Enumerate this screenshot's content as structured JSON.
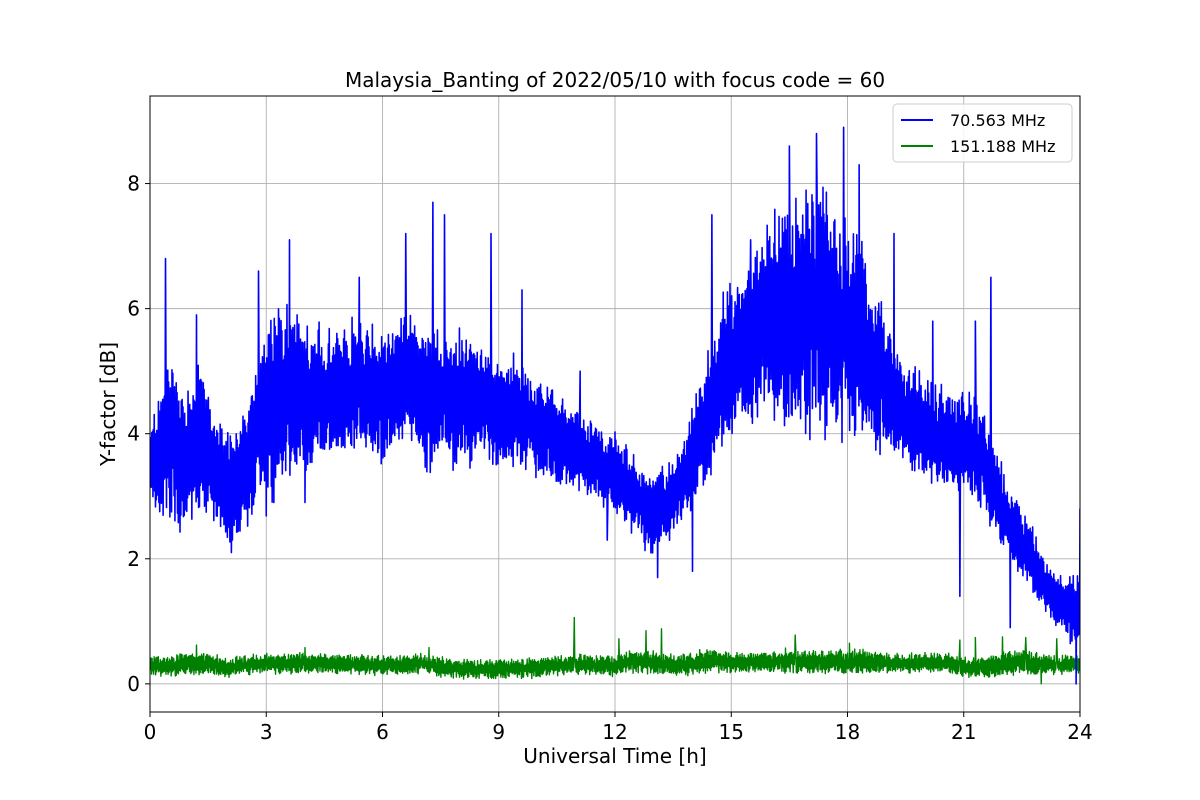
{
  "chart_data": {
    "type": "line",
    "title": "Malaysia_Banting of 2022/05/10 with focus code = 60",
    "xlabel": "Universal Time [h]",
    "ylabel": "Y-factor [dB]",
    "xlim": [
      0,
      24
    ],
    "ylim": [
      -0.45,
      9.4
    ],
    "xticks": [
      0,
      3,
      6,
      9,
      12,
      15,
      18,
      21,
      24
    ],
    "yticks": [
      0,
      2,
      4,
      6,
      8
    ],
    "grid": true,
    "legend_position": "upper right",
    "series": [
      {
        "name": "70.563 MHz",
        "color": "#0000ff",
        "x": [
          0,
          0.25,
          0.5,
          0.75,
          1.0,
          1.25,
          1.5,
          1.75,
          2.0,
          2.25,
          2.5,
          2.75,
          3.0,
          3.25,
          3.5,
          3.75,
          4.0,
          4.25,
          4.5,
          4.75,
          5.0,
          5.25,
          5.5,
          5.75,
          6.0,
          6.25,
          6.5,
          6.75,
          7.0,
          7.25,
          7.5,
          7.75,
          8.0,
          8.25,
          8.5,
          8.75,
          9.0,
          9.25,
          9.5,
          9.75,
          10.0,
          10.25,
          10.5,
          10.75,
          11.0,
          11.25,
          11.5,
          11.75,
          12.0,
          12.25,
          12.5,
          12.75,
          13.0,
          13.25,
          13.5,
          13.75,
          14.0,
          14.25,
          14.5,
          14.75,
          15.0,
          15.25,
          15.5,
          15.75,
          16.0,
          16.25,
          16.5,
          16.75,
          17.0,
          17.25,
          17.5,
          17.75,
          18.0,
          18.25,
          18.5,
          18.75,
          19.0,
          19.25,
          19.5,
          19.75,
          20.0,
          20.25,
          20.5,
          20.75,
          21.0,
          21.25,
          21.5,
          21.75,
          22.0,
          22.25,
          22.5,
          22.75,
          23.0,
          23.25,
          23.5,
          23.75,
          24.0
        ],
        "y": [
          3.5,
          3.6,
          4.0,
          3.6,
          3.8,
          4.0,
          3.8,
          3.3,
          3.2,
          3.2,
          3.5,
          4.0,
          4.2,
          4.5,
          4.7,
          4.6,
          4.5,
          4.6,
          4.6,
          4.7,
          4.7,
          4.8,
          4.8,
          4.7,
          4.7,
          4.8,
          4.8,
          4.9,
          4.6,
          4.6,
          4.6,
          4.5,
          4.5,
          4.5,
          4.6,
          4.4,
          4.3,
          4.4,
          4.3,
          4.2,
          4.1,
          4.0,
          3.9,
          3.8,
          3.8,
          3.6,
          3.6,
          3.4,
          3.4,
          3.2,
          3.0,
          2.8,
          2.7,
          2.8,
          3.0,
          3.3,
          3.6,
          4.0,
          4.5,
          5.0,
          5.2,
          5.4,
          5.5,
          5.6,
          5.8,
          6.0,
          6.0,
          5.9,
          6.0,
          6.0,
          6.0,
          5.7,
          5.8,
          5.5,
          5.2,
          5.0,
          4.8,
          4.5,
          4.3,
          4.2,
          4.0,
          4.0,
          3.9,
          3.8,
          3.9,
          3.8,
          3.6,
          3.2,
          2.8,
          2.5,
          2.2,
          2.0,
          1.7,
          1.4,
          1.3,
          1.2,
          1.1
        ],
        "band": [
          0.5,
          1.0,
          1.2,
          1.2,
          1.0,
          1.2,
          1.0,
          0.8,
          0.8,
          0.8,
          0.9,
          1.0,
          1.3,
          1.5,
          1.5,
          1.2,
          1.2,
          1.0,
          1.0,
          1.0,
          0.9,
          1.0,
          1.0,
          1.0,
          1.0,
          1.0,
          1.0,
          1.0,
          1.0,
          1.2,
          1.0,
          1.0,
          1.0,
          1.0,
          0.9,
          0.8,
          0.8,
          0.8,
          0.8,
          0.8,
          0.8,
          0.7,
          0.7,
          0.6,
          0.6,
          0.6,
          0.6,
          0.6,
          0.6,
          0.6,
          0.6,
          0.6,
          0.6,
          0.6,
          0.6,
          0.6,
          0.8,
          1.0,
          1.0,
          1.1,
          1.1,
          1.1,
          1.2,
          1.3,
          1.5,
          1.6,
          1.7,
          1.8,
          1.8,
          1.8,
          1.8,
          1.6,
          1.6,
          1.6,
          1.4,
          1.2,
          1.0,
          0.9,
          0.8,
          0.8,
          0.8,
          0.8,
          0.7,
          0.7,
          0.8,
          0.8,
          0.7,
          0.7,
          0.6,
          0.5,
          0.5,
          0.5,
          0.4,
          0.4,
          0.4,
          0.5,
          0.6
        ],
        "spikes": [
          [
            0.4,
            6.8
          ],
          [
            1.2,
            5.9
          ],
          [
            2.1,
            2.1
          ],
          [
            2.8,
            6.6
          ],
          [
            3.6,
            7.1
          ],
          [
            4.0,
            2.9
          ],
          [
            5.4,
            6.5
          ],
          [
            6.6,
            7.2
          ],
          [
            7.3,
            7.7
          ],
          [
            7.6,
            7.5
          ],
          [
            8.8,
            7.2
          ],
          [
            9.6,
            6.3
          ],
          [
            11.1,
            5.0
          ],
          [
            11.8,
            2.3
          ],
          [
            13.1,
            1.7
          ],
          [
            14.0,
            1.8
          ],
          [
            14.5,
            7.5
          ],
          [
            15.5,
            7.1
          ],
          [
            16.5,
            8.6
          ],
          [
            17.2,
            8.8
          ],
          [
            17.9,
            8.9
          ],
          [
            18.3,
            8.3
          ],
          [
            19.2,
            7.2
          ],
          [
            20.2,
            5.8
          ],
          [
            20.9,
            1.4
          ],
          [
            21.3,
            5.8
          ],
          [
            21.7,
            6.5
          ],
          [
            22.2,
            0.9
          ],
          [
            23.9,
            0.0
          ],
          [
            24.0,
            2.8
          ]
        ]
      },
      {
        "name": "151.188 MHz",
        "color": "#008000",
        "x": [
          0,
          0.5,
          1.0,
          1.5,
          2.0,
          2.5,
          3.0,
          3.5,
          4.0,
          4.5,
          5.0,
          5.5,
          6.0,
          6.5,
          7.0,
          7.5,
          8.0,
          8.5,
          9.0,
          9.5,
          10.0,
          10.5,
          11.0,
          11.5,
          12.0,
          12.5,
          13.0,
          13.5,
          14.0,
          14.5,
          15.0,
          15.5,
          16.0,
          16.5,
          17.0,
          17.5,
          18.0,
          18.5,
          19.0,
          19.5,
          20.0,
          20.5,
          21.0,
          21.5,
          22.0,
          22.5,
          23.0,
          23.5,
          24.0
        ],
        "y": [
          0.28,
          0.28,
          0.33,
          0.32,
          0.26,
          0.3,
          0.32,
          0.32,
          0.34,
          0.32,
          0.32,
          0.3,
          0.3,
          0.3,
          0.33,
          0.28,
          0.24,
          0.24,
          0.24,
          0.24,
          0.26,
          0.3,
          0.32,
          0.3,
          0.28,
          0.36,
          0.33,
          0.3,
          0.33,
          0.36,
          0.34,
          0.34,
          0.34,
          0.38,
          0.36,
          0.36,
          0.34,
          0.36,
          0.34,
          0.32,
          0.34,
          0.34,
          0.26,
          0.26,
          0.3,
          0.36,
          0.32,
          0.3,
          0.33
        ],
        "band": [
          0.15,
          0.15,
          0.18,
          0.15,
          0.15,
          0.15,
          0.15,
          0.15,
          0.15,
          0.15,
          0.15,
          0.15,
          0.15,
          0.15,
          0.15,
          0.15,
          0.15,
          0.15,
          0.15,
          0.15,
          0.15,
          0.15,
          0.15,
          0.15,
          0.15,
          0.18,
          0.18,
          0.15,
          0.18,
          0.18,
          0.15,
          0.15,
          0.15,
          0.2,
          0.18,
          0.18,
          0.18,
          0.18,
          0.15,
          0.15,
          0.15,
          0.15,
          0.15,
          0.15,
          0.18,
          0.18,
          0.15,
          0.15,
          0.15
        ],
        "spikes": [
          [
            1.2,
            0.62
          ],
          [
            4.0,
            0.58
          ],
          [
            7.2,
            0.58
          ],
          [
            10.95,
            1.06
          ],
          [
            12.1,
            0.72
          ],
          [
            12.8,
            0.85
          ],
          [
            13.2,
            0.88
          ],
          [
            16.65,
            0.78
          ],
          [
            18.05,
            0.65
          ],
          [
            20.9,
            0.7
          ],
          [
            21.3,
            0.74
          ],
          [
            22.0,
            0.75
          ],
          [
            22.6,
            0.74
          ],
          [
            23.4,
            0.72
          ],
          [
            23.0,
            0.0
          ]
        ]
      }
    ]
  }
}
